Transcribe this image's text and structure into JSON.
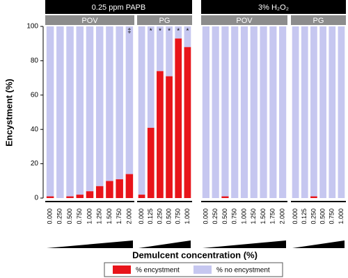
{
  "chart_data": {
    "type": "bar",
    "stacked": true,
    "ylabel": "Encystment (%)",
    "xlabel": "Demulcent concentration (%)",
    "ylim": [
      0,
      100
    ],
    "yticks": [
      0,
      20,
      40,
      60,
      80,
      100
    ],
    "series": [
      {
        "name": "% encystment",
        "color": "#e8141a"
      },
      {
        "name": "% no encystment",
        "color": "#c6c7f0"
      }
    ],
    "groups": [
      {
        "name": "0.25 ppm PAPB",
        "panels": [
          {
            "name": "POV",
            "categories": [
              "0.000",
              "0.250",
              "0.500",
              "0.750",
              "1.000",
              "1.250",
              "1.500",
              "1.750",
              "2.000"
            ],
            "series": [
              {
                "values": [
                  1,
                  0,
                  1,
                  2,
                  4,
                  7,
                  10,
                  11,
                  14
                ]
              },
              {
                "values": [
                  99,
                  100,
                  99,
                  98,
                  96,
                  93,
                  90,
                  89,
                  86
                ]
              }
            ],
            "annotations": [
              null,
              null,
              null,
              null,
              null,
              null,
              null,
              null,
              "‡"
            ]
          },
          {
            "name": "PG",
            "categories": [
              "0.000",
              "0.125",
              "0.250",
              "0.500",
              "0.750",
              "1.000"
            ],
            "series": [
              {
                "values": [
                  2,
                  41,
                  74,
                  71,
                  93,
                  88
                ]
              },
              {
                "values": [
                  98,
                  59,
                  26,
                  29,
                  7,
                  12
                ]
              }
            ],
            "annotations": [
              null,
              "*",
              "*",
              "*",
              "*",
              "*"
            ]
          }
        ]
      },
      {
        "name": "3% H₂O₂",
        "panels": [
          {
            "name": "POV",
            "categories": [
              "0.000",
              "0.250",
              "0.500",
              "0.750",
              "1.000",
              "1.250",
              "1.500",
              "1.750",
              "2.000"
            ],
            "series": [
              {
                "values": [
                  0,
                  0,
                  1,
                  0,
                  0,
                  0,
                  0,
                  0,
                  0
                ]
              },
              {
                "values": [
                  100,
                  100,
                  99,
                  100,
                  100,
                  100,
                  100,
                  100,
                  100
                ]
              }
            ],
            "annotations": [
              null,
              null,
              null,
              null,
              null,
              null,
              null,
              null,
              null
            ]
          },
          {
            "name": "PG",
            "categories": [
              "0.000",
              "0.125",
              "0.250",
              "0.500",
              "0.750",
              "1.000"
            ],
            "series": [
              {
                "values": [
                  0,
                  0,
                  1,
                  0,
                  0,
                  0
                ]
              },
              {
                "values": [
                  100,
                  100,
                  99,
                  100,
                  100,
                  100
                ]
              }
            ],
            "annotations": [
              null,
              null,
              null,
              null,
              null,
              null
            ]
          }
        ]
      }
    ]
  }
}
